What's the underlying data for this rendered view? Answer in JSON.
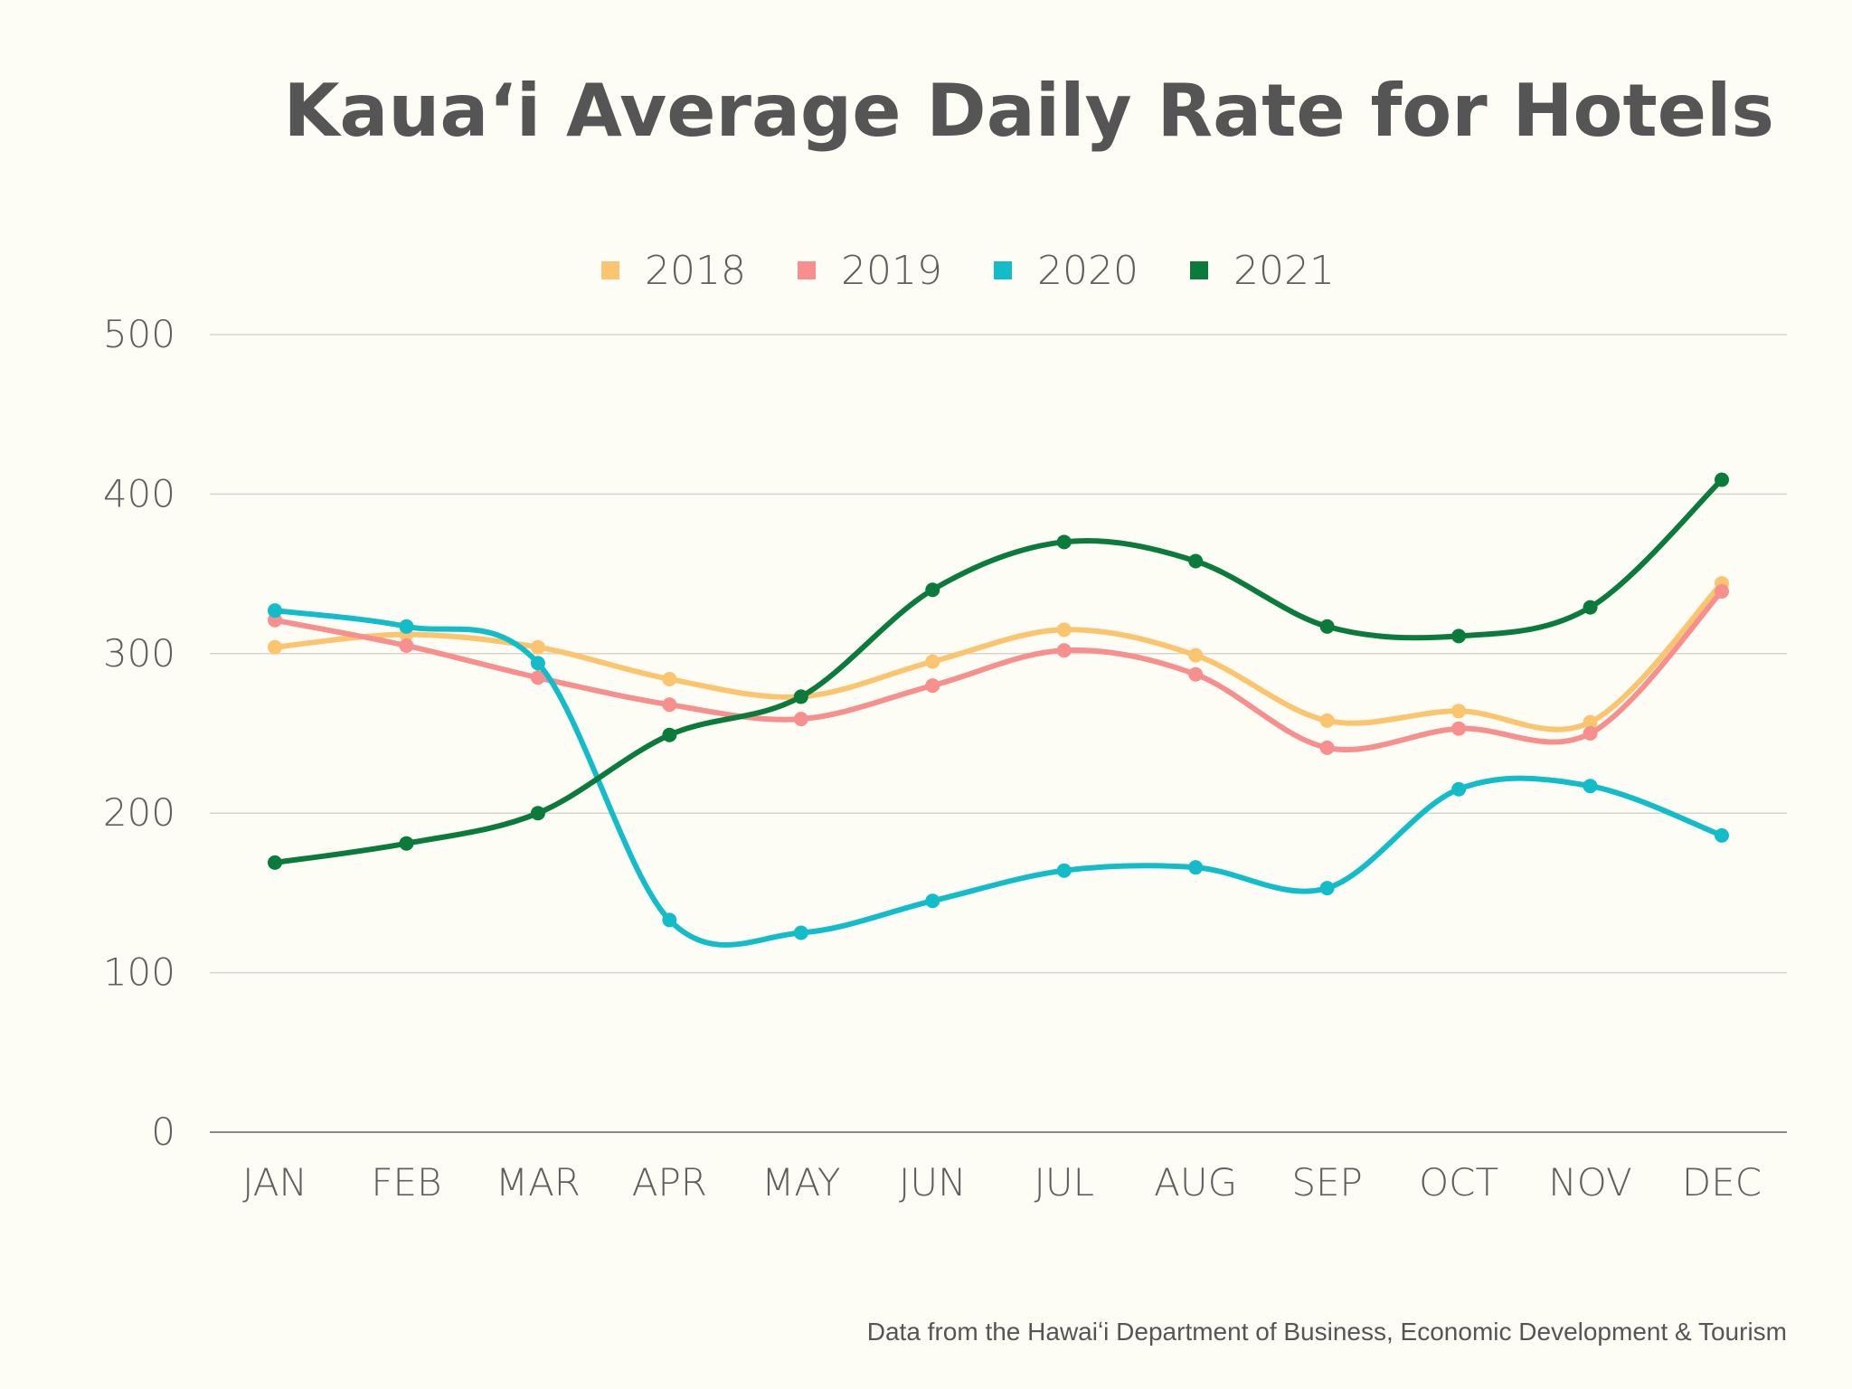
{
  "chart_data": {
    "type": "line",
    "title": "Kauaʻi Average Daily Rate for Hotels",
    "source": "Data from the Hawaiʻi Department of Business, Economic Development & Tourism",
    "categories": [
      "JAN",
      "FEB",
      "MAR",
      "APR",
      "MAY",
      "JUN",
      "JUL",
      "AUG",
      "SEP",
      "OCT",
      "NOV",
      "DEC"
    ],
    "ylim": [
      0,
      500
    ],
    "yticks": [
      0,
      100,
      200,
      300,
      400,
      500
    ],
    "grid": true,
    "legend_position": "top-center",
    "series": [
      {
        "name": "2018",
        "color": "#fbc56f",
        "values": [
          304,
          312,
          304,
          284,
          273,
          295,
          315,
          299,
          258,
          264,
          257,
          344
        ]
      },
      {
        "name": "2019",
        "color": "#f78f8f",
        "values": [
          321,
          305,
          285,
          268,
          259,
          280,
          302,
          287,
          241,
          253,
          250,
          339
        ]
      },
      {
        "name": "2020",
        "color": "#12bdc9",
        "values": [
          327,
          317,
          294,
          133,
          125,
          145,
          164,
          166,
          153,
          215,
          217,
          186
        ]
      },
      {
        "name": "2021",
        "color": "#0a7b3b",
        "values": [
          169,
          181,
          200,
          249,
          273,
          340,
          370,
          358,
          317,
          311,
          329,
          409
        ]
      }
    ]
  }
}
